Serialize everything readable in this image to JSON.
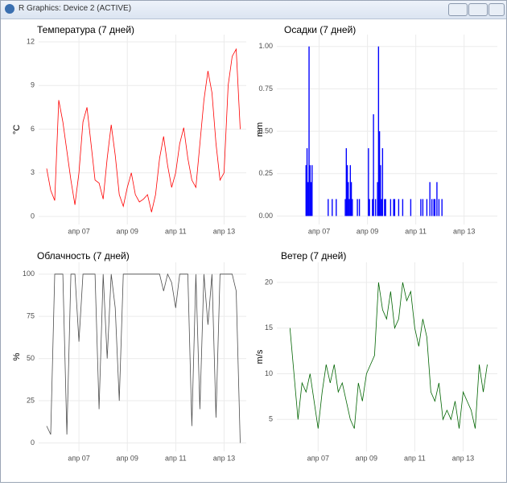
{
  "window": {
    "title": "R Graphics: Device 2 (ACTIVE)"
  },
  "chart_data": [
    {
      "type": "line",
      "title": "Температура (7 дней)",
      "ylabel": "°C",
      "color": "#ff0000",
      "grid": true,
      "x": [
        -32,
        -28,
        -24,
        -20,
        -16,
        -12,
        -8,
        -4,
        0,
        4,
        8,
        12,
        16,
        20,
        24,
        28,
        32,
        36,
        40,
        44,
        48,
        52,
        56,
        60,
        64,
        68,
        72,
        76,
        80,
        84,
        88,
        92,
        96,
        100,
        104,
        108,
        112,
        116,
        120,
        124,
        128,
        132,
        136,
        140,
        144,
        148,
        152,
        156,
        160
      ],
      "values": [
        3.3,
        1.8,
        1.1,
        8,
        6.5,
        4.5,
        2.5,
        0.8,
        3,
        6.5,
        7.5,
        5,
        2.5,
        2.3,
        1.2,
        4,
        6.3,
        4.2,
        1.5,
        0.7,
        2,
        3,
        1.5,
        1,
        1.2,
        1.5,
        0.3,
        1.5,
        4,
        5.5,
        3.5,
        2,
        3,
        5,
        6.1,
        4,
        2.5,
        2,
        5,
        8,
        10,
        8.5,
        5,
        2.5,
        3,
        9,
        11,
        11.5,
        6
      ],
      "xlim": [
        -40,
        166
      ],
      "xticks": [
        {
          "value": 0,
          "label": "апр 07"
        },
        {
          "value": 48,
          "label": "апр 09"
        },
        {
          "value": 96,
          "label": "апр 11"
        },
        {
          "value": 144,
          "label": "апр 13"
        }
      ],
      "ylim": [
        -0.55,
        12.5
      ],
      "yticks": [
        0,
        3,
        6,
        9,
        12
      ]
    },
    {
      "type": "bar",
      "title": "Осадки (7 дней)",
      "ylabel": "mm",
      "color": "#0000ff",
      "grid": true,
      "x": [
        -13,
        -12,
        -11,
        -10,
        -9,
        -8,
        -7,
        9,
        13,
        17,
        26,
        27,
        28,
        29,
        30,
        31,
        32,
        33,
        38,
        40,
        49,
        50,
        53,
        54,
        56,
        58,
        59,
        60,
        61,
        62,
        63,
        65,
        66,
        71,
        74,
        75,
        79,
        83,
        91,
        101,
        103,
        107,
        110,
        112,
        114,
        115,
        117,
        119,
        122
      ],
      "values": [
        0.3,
        0.4,
        0.2,
        1.0,
        0.3,
        0.2,
        0.3,
        0.1,
        0.1,
        0.1,
        0.1,
        0.4,
        0.3,
        0.2,
        0.1,
        0.3,
        0.2,
        0.1,
        0.1,
        0.1,
        0.4,
        0.1,
        0.1,
        0.6,
        0.1,
        0.2,
        1.0,
        0.5,
        0.3,
        0.1,
        0.4,
        0.1,
        0.1,
        0.1,
        0.1,
        0.1,
        0.1,
        0.1,
        0.1,
        0.1,
        0.1,
        0.1,
        0.2,
        0.1,
        0.1,
        0.1,
        0.2,
        0.1,
        0.1
      ],
      "xlim": [
        -42,
        177
      ],
      "xticks": [
        {
          "value": 0,
          "label": "апр 07"
        },
        {
          "value": 48,
          "label": "апр 09"
        },
        {
          "value": 96,
          "label": "апр 11"
        },
        {
          "value": 144,
          "label": "апр 13"
        }
      ],
      "ylim": [
        -0.05,
        1.07
      ],
      "yticks": [
        {
          "value": 0,
          "label": "0.00"
        },
        {
          "value": 0.25,
          "label": "0.25"
        },
        {
          "value": 0.5,
          "label": "0.50"
        },
        {
          "value": 0.75,
          "label": "0.75"
        },
        {
          "value": 1,
          "label": "1.00"
        }
      ]
    },
    {
      "type": "line",
      "title": "Облачность (7 дней)",
      "ylabel": "%",
      "color": "#4d4d4d",
      "grid": true,
      "x": [
        -32,
        -28,
        -24,
        -20,
        -16,
        -12,
        -8,
        -4,
        0,
        4,
        8,
        12,
        16,
        20,
        24,
        28,
        32,
        36,
        40,
        44,
        48,
        52,
        56,
        60,
        64,
        68,
        72,
        76,
        80,
        84,
        88,
        92,
        96,
        100,
        104,
        108,
        112,
        116,
        120,
        124,
        128,
        132,
        136,
        140,
        144,
        148,
        152,
        156,
        160
      ],
      "values": [
        10,
        5,
        100,
        100,
        100,
        5,
        100,
        100,
        60,
        100,
        100,
        100,
        100,
        20,
        100,
        50,
        100,
        80,
        25,
        100,
        100,
        100,
        100,
        100,
        100,
        100,
        100,
        100,
        100,
        90,
        100,
        95,
        80,
        100,
        100,
        100,
        10,
        100,
        20,
        100,
        70,
        100,
        15,
        100,
        100,
        100,
        100,
        90,
        0
      ],
      "xlim": [
        -40,
        166
      ],
      "xticks": [
        {
          "value": 0,
          "label": "апр 07"
        },
        {
          "value": 48,
          "label": "апр 09"
        },
        {
          "value": 96,
          "label": "апр 11"
        },
        {
          "value": 144,
          "label": "апр 13"
        }
      ],
      "ylim": [
        -5,
        107
      ],
      "yticks": [
        0,
        25,
        50,
        75,
        100
      ]
    },
    {
      "type": "line",
      "title": "Ветер (7 дней)",
      "ylabel": "m/s",
      "color": "#006400",
      "grid": true,
      "x": [
        -28,
        -24,
        -20,
        -16,
        -12,
        -8,
        -4,
        0,
        4,
        8,
        12,
        16,
        20,
        24,
        28,
        32,
        36,
        40,
        44,
        48,
        52,
        56,
        60,
        64,
        68,
        72,
        76,
        80,
        84,
        88,
        92,
        96,
        100,
        104,
        108,
        112,
        116,
        120,
        124,
        128,
        132,
        136,
        140,
        144,
        148,
        152,
        156,
        160,
        164,
        168
      ],
      "values": [
        15,
        10,
        5,
        9,
        8,
        10,
        7,
        4,
        8,
        11,
        9,
        11,
        8,
        9,
        7,
        5,
        4,
        9,
        7,
        10,
        11,
        12,
        20,
        17,
        16,
        19,
        15,
        16,
        20,
        18,
        19,
        15,
        13,
        16,
        14,
        8,
        7,
        9,
        5,
        6,
        5,
        7,
        4,
        8,
        7,
        6,
        4,
        11,
        8,
        11
      ],
      "xlim": [
        -41,
        178
      ],
      "xticks": [
        {
          "value": 0,
          "label": "апр 07"
        },
        {
          "value": 48,
          "label": "апр 09"
        },
        {
          "value": 96,
          "label": "апр 11"
        },
        {
          "value": 144,
          "label": "апр 13"
        }
      ],
      "ylim": [
        1.5,
        22.2
      ],
      "yticks": [
        5,
        10,
        15,
        20
      ]
    }
  ]
}
